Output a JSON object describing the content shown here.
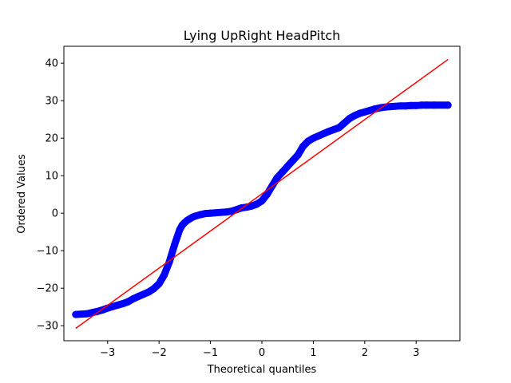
{
  "chart_data": {
    "type": "scatter",
    "title": "Lying UpRight HeadPitch",
    "xlabel": "Theoretical quantiles",
    "ylabel": "Ordered Values",
    "xlim": [
      -3.85,
      3.85
    ],
    "ylim": [
      -34,
      44.5
    ],
    "xticks": [
      -3,
      -2,
      -1,
      0,
      1,
      2,
      3
    ],
    "xtick_labels": [
      "−3",
      "−2",
      "−1",
      "0",
      "1",
      "2",
      "3"
    ],
    "yticks": [
      -30,
      -20,
      -10,
      0,
      10,
      20,
      30,
      40
    ],
    "ytick_labels": [
      "−30",
      "−20",
      "−10",
      "0",
      "10",
      "20",
      "30",
      "40"
    ],
    "grid": false,
    "colors": {
      "points": "#0000ff",
      "fit_line": "#ff0000"
    },
    "series": [
      {
        "kind": "points",
        "x": [
          -3.62,
          -3.4,
          -3.3,
          -3.2,
          -3.1,
          -3.0,
          -2.9,
          -2.8,
          -2.7,
          -2.6,
          -2.5,
          -2.4,
          -2.3,
          -2.2,
          -2.1,
          -2.0,
          -1.9,
          -1.8,
          -1.7,
          -1.65,
          -1.6,
          -1.55,
          -1.5,
          -1.45,
          -1.4,
          -1.35,
          -1.3,
          -1.2,
          -1.1,
          -1.0,
          -0.9,
          -0.8,
          -0.7,
          -0.6,
          -0.5,
          -0.4,
          -0.3,
          -0.2,
          -0.1,
          0.0,
          0.1,
          0.2,
          0.3,
          0.4,
          0.5,
          0.6,
          0.7,
          0.8,
          0.9,
          1.0,
          1.1,
          1.2,
          1.3,
          1.4,
          1.5,
          1.6,
          1.7,
          1.8,
          1.9,
          2.0,
          2.1,
          2.2,
          2.3,
          2.4,
          2.5,
          2.6,
          2.7,
          2.8,
          2.9,
          3.0,
          3.1,
          3.2,
          3.35,
          3.62
        ],
        "y": [
          -27,
          -26.8,
          -26.5,
          -26.2,
          -25.8,
          -25.3,
          -24.9,
          -24.5,
          -24.1,
          -23.6,
          -22.8,
          -22.2,
          -21.6,
          -21.0,
          -20.1,
          -18.8,
          -16.5,
          -13.0,
          -8.5,
          -6.5,
          -4.5,
          -3.2,
          -2.5,
          -1.9,
          -1.5,
          -1.1,
          -0.8,
          -0.4,
          -0.1,
          0.0,
          0.1,
          0.2,
          0.3,
          0.5,
          0.9,
          1.4,
          1.6,
          1.9,
          2.4,
          3.3,
          5.0,
          7.3,
          9.5,
          11.0,
          12.5,
          14.0,
          15.5,
          17.8,
          19.2,
          20.0,
          20.6,
          21.2,
          21.8,
          22.3,
          22.8,
          24.0,
          25.2,
          26.0,
          26.6,
          27.0,
          27.4,
          27.8,
          28.1,
          28.3,
          28.4,
          28.5,
          28.6,
          28.6,
          28.7,
          28.7,
          28.8,
          28.8,
          28.8,
          28.8
        ]
      },
      {
        "kind": "fit_line",
        "x": [
          -3.62,
          3.62
        ],
        "y": [
          -30.7,
          41.0
        ]
      }
    ]
  }
}
